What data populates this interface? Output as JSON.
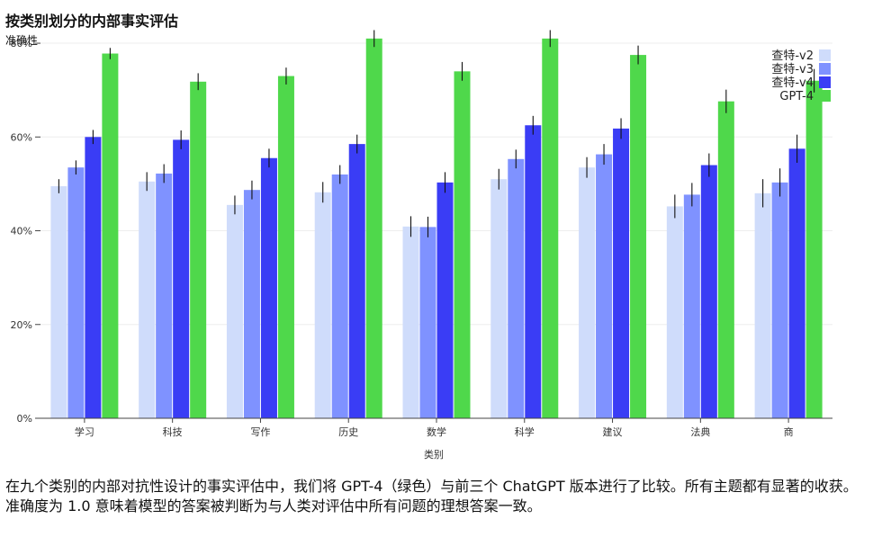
{
  "chart_data": {
    "type": "bar",
    "title": "按类别划分的内部事实评估",
    "ylabel": "准确性",
    "xlabel": "类别",
    "categories": [
      "学习",
      "科技",
      "写作",
      "历史",
      "数学",
      "科学",
      "建议",
      "法典",
      "商"
    ],
    "ylim": [
      0,
      0.85
    ],
    "yticks": [
      0,
      0.2,
      0.4,
      0.6,
      0.8
    ],
    "ytick_labels": [
      "0%",
      "20%",
      "40%",
      "60%",
      "80%"
    ],
    "legend_position": "top-right",
    "grid": true,
    "series": [
      {
        "name": "查特-v2",
        "color": "#cfdcfb",
        "values": [
          0.495,
          0.505,
          0.455,
          0.482,
          0.409,
          0.51,
          0.535,
          0.452,
          0.48
        ],
        "errors": [
          0.015,
          0.02,
          0.02,
          0.022,
          0.022,
          0.022,
          0.022,
          0.025,
          0.03
        ]
      },
      {
        "name": "查特-v3",
        "color": "#7f92ff",
        "values": [
          0.535,
          0.522,
          0.487,
          0.52,
          0.408,
          0.553,
          0.563,
          0.477,
          0.503
        ],
        "errors": [
          0.015,
          0.02,
          0.02,
          0.02,
          0.022,
          0.02,
          0.022,
          0.025,
          0.03
        ]
      },
      {
        "name": "查特-v4",
        "color": "#3a3df5",
        "values": [
          0.6,
          0.594,
          0.555,
          0.585,
          0.503,
          0.625,
          0.618,
          0.54,
          0.575
        ],
        "errors": [
          0.015,
          0.02,
          0.02,
          0.02,
          0.022,
          0.02,
          0.022,
          0.025,
          0.03
        ]
      },
      {
        "name": "GPT-4",
        "color": "#4fd84b",
        "values": [
          0.778,
          0.718,
          0.73,
          0.81,
          0.74,
          0.81,
          0.775,
          0.676,
          0.72
        ],
        "errors": [
          0.012,
          0.018,
          0.018,
          0.018,
          0.02,
          0.018,
          0.02,
          0.025,
          0.025
        ]
      }
    ]
  },
  "caption": "在九个类别的内部对抗性设计的事实评估中，我们将 GPT-4（绿色）与前三个 ChatGPT 版本进行了比较。所有主题都有显著的收获。准确度为 1.0 意味着模型的答案被判断为与人类对评估中所有问题的理想答案一致。"
}
